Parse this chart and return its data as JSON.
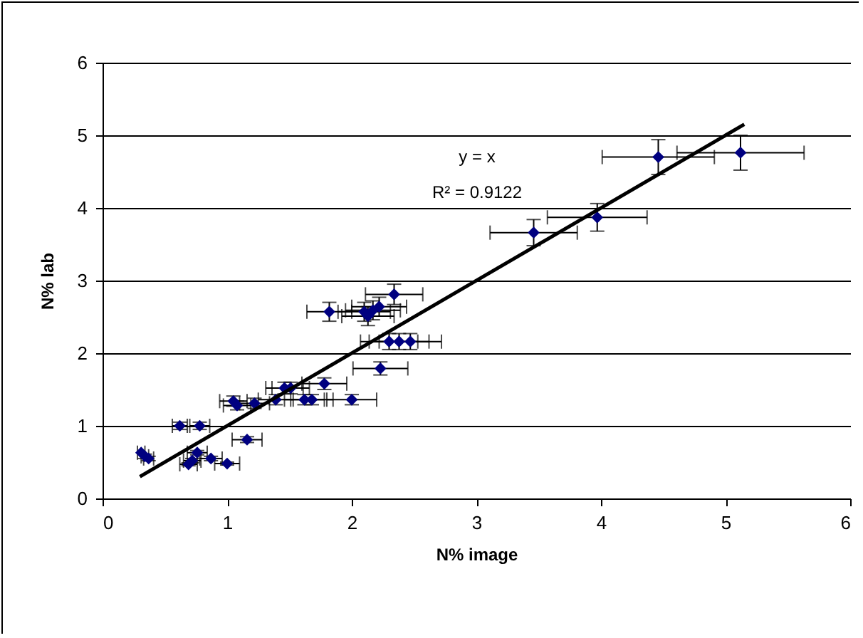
{
  "chart_data": {
    "type": "scatter",
    "xlabel": "N% image",
    "ylabel": "N% lab",
    "xlim": [
      0,
      6
    ],
    "ylim": [
      0,
      6
    ],
    "xticks": [
      0,
      1,
      2,
      3,
      4,
      5,
      6
    ],
    "yticks": [
      0,
      1,
      2,
      3,
      4,
      5,
      6
    ],
    "grid": "y",
    "annotations": [
      "y = x",
      "R² = 0.9122"
    ],
    "series": [
      {
        "type": "scatter",
        "color": "#000080",
        "marker": "diamond",
        "x": [
          0.31,
          0.34,
          0.37,
          0.62,
          0.78,
          0.69,
          0.72,
          0.76,
          0.87,
          1.0,
          1.16,
          1.05,
          1.08,
          1.22,
          1.39,
          1.46,
          1.51,
          1.62,
          1.68,
          1.78,
          2.0,
          2.23,
          1.82,
          2.1,
          2.13,
          2.17,
          2.22,
          2.34,
          2.3,
          2.38,
          2.47,
          3.46,
          3.97,
          4.46,
          5.12
        ],
        "values": [
          0.63,
          0.58,
          0.55,
          1.0,
          1.0,
          0.47,
          0.52,
          0.63,
          0.55,
          0.48,
          0.81,
          1.34,
          1.28,
          1.31,
          1.36,
          1.52,
          1.52,
          1.36,
          1.36,
          1.58,
          1.36,
          1.79,
          2.57,
          2.57,
          2.51,
          2.59,
          2.64,
          2.81,
          2.16,
          2.16,
          2.16,
          3.66,
          3.87,
          4.7,
          4.76
        ],
        "xerrors": [
          0.03,
          0.03,
          0.04,
          0.06,
          0.08,
          0.07,
          0.07,
          0.08,
          0.09,
          0.1,
          0.12,
          0.11,
          0.11,
          0.12,
          0.14,
          0.15,
          0.15,
          0.16,
          0.17,
          0.18,
          0.2,
          0.22,
          0.18,
          0.21,
          0.21,
          0.22,
          0.22,
          0.23,
          0.23,
          0.24,
          0.25,
          0.35,
          0.4,
          0.45,
          0.51
        ],
        "errors": [
          null,
          0.03,
          0.03,
          0.05,
          0.05,
          0.02,
          0.03,
          0.03,
          0.03,
          0.02,
          0.04,
          0.07,
          0.06,
          0.07,
          0.07,
          0.08,
          0.08,
          0.07,
          0.07,
          0.08,
          0.07,
          0.09,
          0.13,
          0.13,
          0.13,
          0.13,
          0.13,
          0.14,
          0.11,
          0.11,
          0.11,
          0.18,
          0.19,
          0.24,
          0.24
        ]
      },
      {
        "type": "line",
        "color": "#000000",
        "x": [
          0.3,
          5.15
        ],
        "values": [
          0.3,
          5.15
        ]
      }
    ]
  }
}
